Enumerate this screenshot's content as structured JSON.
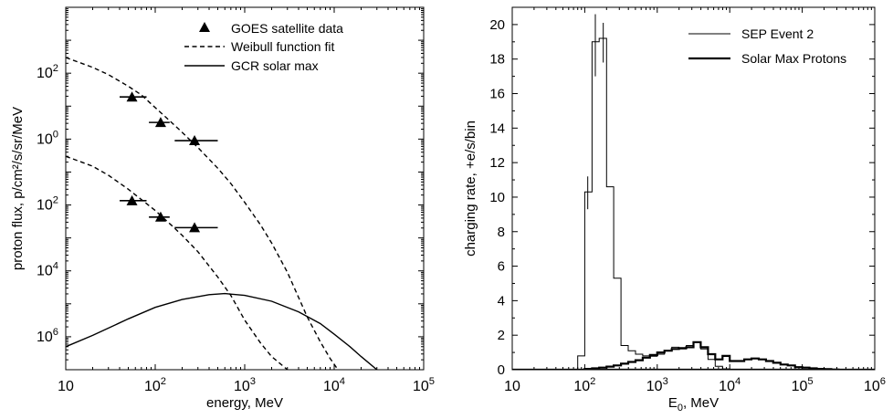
{
  "chart_data": [
    {
      "type": "scatter",
      "xlabel": "energy, MeV",
      "ylabel": "proton flux, p/cm²/s/sr/MeV",
      "x_scale": "log",
      "y_scale": "log",
      "xlim": [
        10,
        100000
      ],
      "ylim": [
        1e-07,
        10000
      ],
      "x_ticks": [
        {
          "value": 10,
          "label": "10"
        },
        {
          "value": 100,
          "label": "10",
          "sup": "2"
        },
        {
          "value": 1000,
          "label": "10",
          "sup": "3"
        },
        {
          "value": 10000,
          "label": "10",
          "sup": "4"
        },
        {
          "value": 100000,
          "label": "10",
          "sup": "5"
        }
      ],
      "y_ticks": [
        {
          "value": 100,
          "label": "10",
          "sup": "2"
        },
        {
          "value": 1,
          "label": "10",
          "sup": "0"
        },
        {
          "value": 0.01,
          "label": "10",
          "sup": "2"
        },
        {
          "value": 0.0001,
          "label": "10",
          "sup": "4"
        },
        {
          "value": 1e-06,
          "label": "10",
          "sup": "6"
        }
      ],
      "legend": [
        "GOES satellite data",
        "Weibull function fit",
        "GCR solar max"
      ],
      "legend_position": "top-right",
      "series": [
        {
          "name": "GOES satellite data",
          "style": "triangle-markers",
          "points": [
            {
              "x": 55,
              "y": 19,
              "x_err": [
                40,
                80
              ]
            },
            {
              "x": 115,
              "y": 3.2,
              "x_err": [
                85,
                145
              ]
            },
            {
              "x": 275,
              "y": 0.9,
              "x_err": [
                165,
                500
              ]
            },
            {
              "x": 55,
              "y": 0.0135,
              "x_err": [
                40,
                80
              ]
            },
            {
              "x": 115,
              "y": 0.0043,
              "x_err": [
                85,
                145
              ]
            },
            {
              "x": 275,
              "y": 0.00205,
              "x_err": [
                165,
                500
              ]
            }
          ]
        },
        {
          "name": "Weibull function fit",
          "style": "dashed",
          "points": [
            [
              10,
              300
            ],
            [
              20,
              150
            ],
            [
              30,
              90
            ],
            [
              50,
              40
            ],
            [
              70,
              22
            ],
            [
              100,
              9
            ],
            [
              150,
              3.3
            ],
            [
              200,
              1.6
            ],
            [
              300,
              0.55
            ],
            [
              500,
              0.13
            ],
            [
              700,
              0.045
            ],
            [
              1000,
              0.012
            ],
            [
              1500,
              0.0025
            ],
            [
              2000,
              0.0007
            ],
            [
              3000,
              9e-05
            ],
            [
              5000,
              4e-06
            ],
            [
              7000,
              7e-07
            ],
            [
              9000,
              2.2e-07
            ],
            [
              11000,
              1e-07
            ]
          ]
        },
        {
          "name": "Weibull function fit (low)",
          "style": "dashed",
          "points": [
            [
              10,
              0.3
            ],
            [
              20,
              0.15
            ],
            [
              30,
              0.08
            ],
            [
              50,
              0.03
            ],
            [
              80,
              0.011
            ],
            [
              100,
              0.0068
            ],
            [
              150,
              0.0025
            ],
            [
              200,
              0.0012
            ],
            [
              300,
              0.00038
            ],
            [
              500,
              6.5e-05
            ],
            [
              700,
              1.8e-05
            ],
            [
              1000,
              3.2e-06
            ],
            [
              1500,
              6.5e-07
            ],
            [
              2000,
              2.5e-07
            ],
            [
              3000,
              1e-07
            ]
          ]
        },
        {
          "name": "GCR solar max",
          "style": "solid",
          "points": [
            [
              10,
              5e-07
            ],
            [
              20,
              1.1e-06
            ],
            [
              50,
              3.5e-06
            ],
            [
              100,
              7.8e-06
            ],
            [
              200,
              1.35e-05
            ],
            [
              400,
              1.9e-05
            ],
            [
              600,
              2.05e-05
            ],
            [
              1000,
              1.8e-05
            ],
            [
              2000,
              1.2e-05
            ],
            [
              4000,
              5.7e-06
            ],
            [
              7000,
              2.5e-06
            ],
            [
              10000,
              1.2e-06
            ],
            [
              15000,
              5e-07
            ],
            [
              20000,
              2.5e-07
            ],
            [
              30000,
              1e-07
            ]
          ]
        }
      ]
    },
    {
      "type": "line",
      "xlabel": "E",
      "xlabel_sub": "0",
      "xlabel_unit": ", MeV",
      "ylabel": "charging rate, +e/s/bin",
      "x_scale": "log",
      "xlim": [
        10,
        1000000
      ],
      "ylim": [
        0,
        21
      ],
      "x_ticks": [
        {
          "value": 10,
          "label": "10"
        },
        {
          "value": 100,
          "label": "10",
          "sup": "2"
        },
        {
          "value": 1000,
          "label": "10",
          "sup": "3"
        },
        {
          "value": 10000,
          "label": "10",
          "sup": "4"
        },
        {
          "value": 100000,
          "label": "10",
          "sup": "5"
        },
        {
          "value": 1000000,
          "label": "10",
          "sup": "6"
        }
      ],
      "y_ticks": [
        0,
        2,
        4,
        6,
        8,
        10,
        12,
        14,
        16,
        18,
        20
      ],
      "legend": [
        "SEP Event 2",
        "Solar Max Protons"
      ],
      "legend_position": "top-right",
      "series": [
        {
          "name": "SEP Event 2",
          "style": "thin-step",
          "bin_edges": [
            80,
            100,
            126,
            158,
            200,
            251,
            316,
            398,
            501,
            631,
            794,
            1000,
            1259,
            1585,
            1995,
            2512,
            3162,
            3981,
            5012,
            6310,
            7943,
            10000
          ],
          "values": [
            0.8,
            10.3,
            19.0,
            19.2,
            10.6,
            5.3,
            1.4,
            1.1,
            0.9,
            0.8,
            0.78,
            0.9,
            1.1,
            1.3,
            1.2,
            1.4,
            1.6,
            1.2,
            0.6,
            0.2,
            0.05
          ],
          "error_bars": [
            {
              "x": 110,
              "low": 9.3,
              "high": 11.2
            },
            {
              "x": 140,
              "low": 17.0,
              "high": 20.6
            },
            {
              "x": 180,
              "low": 17.8,
              "high": 20.1
            }
          ]
        },
        {
          "name": "Solar Max Protons",
          "style": "thick-step",
          "bin_edges": [
            100,
            126,
            158,
            200,
            251,
            316,
            398,
            501,
            631,
            794,
            1000,
            1259,
            1585,
            1995,
            2512,
            3162,
            3981,
            5012,
            6310,
            7943,
            10000,
            12589,
            15849,
            19953,
            25119,
            31623,
            39811,
            50119,
            63096,
            79433,
            100000,
            125893,
            158489,
            199526,
            251189,
            316228
          ],
          "values": [
            0.05,
            0.08,
            0.12,
            0.18,
            0.25,
            0.35,
            0.45,
            0.55,
            0.7,
            0.85,
            1.0,
            1.1,
            1.2,
            1.25,
            1.3,
            1.6,
            1.3,
            0.9,
            0.6,
            0.8,
            0.5,
            0.5,
            0.6,
            0.65,
            0.6,
            0.5,
            0.4,
            0.3,
            0.25,
            0.15,
            0.12,
            0.08,
            0.05,
            0.03,
            0.01
          ]
        }
      ]
    }
  ]
}
